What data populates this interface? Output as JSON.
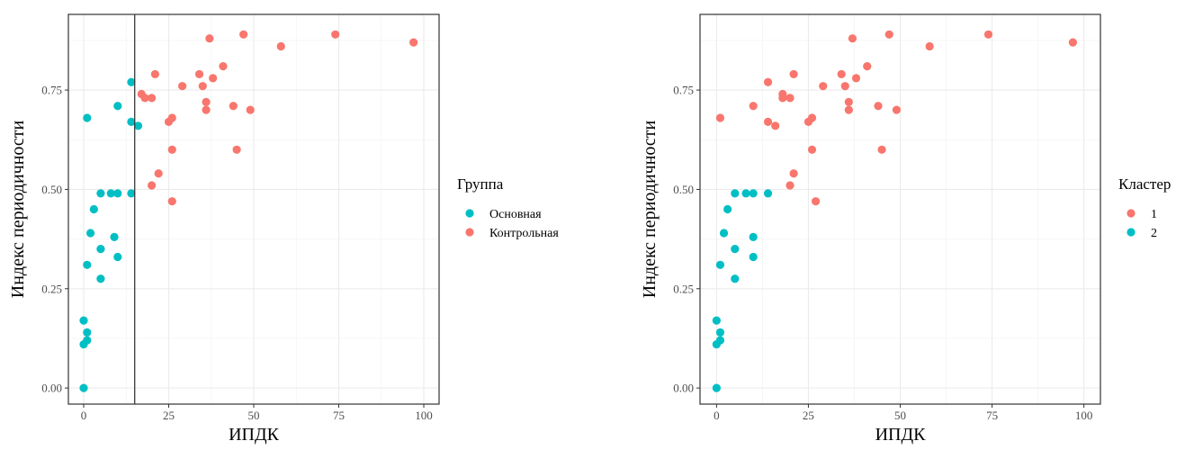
{
  "chart_data": [
    {
      "type": "scatter",
      "xlabel": "ИПДК",
      "ylabel": "Индекс периодичности",
      "xlim": [
        0,
        100
      ],
      "ylim": [
        0,
        0.9
      ],
      "x_ticks": [
        "0",
        "25",
        "50",
        "75",
        "100"
      ],
      "y_ticks": [
        "0.00",
        "0.25",
        "0.50",
        "0.75"
      ],
      "grid": true,
      "vline_x": 15,
      "legend": {
        "title": "Группа",
        "placement": "right"
      },
      "series": [
        {
          "name": "Основная",
          "color": "#00BFC4",
          "points": [
            [
              1,
              0.68
            ],
            [
              14,
              0.77
            ],
            [
              14,
              0.67
            ],
            [
              16,
              0.66
            ],
            [
              10,
              0.71
            ],
            [
              5,
              0.49
            ],
            [
              8,
              0.49
            ],
            [
              10,
              0.49
            ],
            [
              14,
              0.49
            ],
            [
              3,
              0.45
            ],
            [
              2,
              0.39
            ],
            [
              9,
              0.38
            ],
            [
              5,
              0.35
            ],
            [
              10,
              0.33
            ],
            [
              1,
              0.31
            ],
            [
              5,
              0.275
            ],
            [
              0,
              0.17
            ],
            [
              1,
              0.14
            ],
            [
              1,
              0.12
            ],
            [
              0,
              0.11
            ],
            [
              0,
              0.0
            ]
          ]
        },
        {
          "name": "Контрольная",
          "color": "#F8766D",
          "points": [
            [
              74,
              0.89
            ],
            [
              47,
              0.89
            ],
            [
              37,
              0.88
            ],
            [
              97,
              0.87
            ],
            [
              58,
              0.86
            ],
            [
              41,
              0.81
            ],
            [
              21,
              0.79
            ],
            [
              34,
              0.79
            ],
            [
              38,
              0.78
            ],
            [
              29,
              0.76
            ],
            [
              35,
              0.76
            ],
            [
              17,
              0.74
            ],
            [
              18,
              0.73
            ],
            [
              20,
              0.73
            ],
            [
              36,
              0.72
            ],
            [
              44,
              0.71
            ],
            [
              36,
              0.7
            ],
            [
              49,
              0.7
            ],
            [
              26,
              0.68
            ],
            [
              25,
              0.67
            ],
            [
              26,
              0.6
            ],
            [
              45,
              0.6
            ],
            [
              22,
              0.54
            ],
            [
              20,
              0.51
            ],
            [
              26,
              0.47
            ]
          ]
        }
      ]
    },
    {
      "type": "scatter",
      "xlabel": "ИПДК",
      "ylabel": "Индекс периодичности",
      "xlim": [
        0,
        100
      ],
      "ylim": [
        0,
        0.9
      ],
      "x_ticks": [
        "0",
        "25",
        "50",
        "75",
        "100"
      ],
      "y_ticks": [
        "0.00",
        "0.25",
        "0.50",
        "0.75"
      ],
      "grid": true,
      "legend": {
        "title": "Кластер",
        "placement": "right"
      },
      "series": [
        {
          "name": "1",
          "color": "#F8766D",
          "points": [
            [
              74,
              0.89
            ],
            [
              47,
              0.89
            ],
            [
              37,
              0.88
            ],
            [
              97,
              0.87
            ],
            [
              58,
              0.86
            ],
            [
              41,
              0.81
            ],
            [
              21,
              0.79
            ],
            [
              34,
              0.79
            ],
            [
              38,
              0.78
            ],
            [
              14,
              0.77
            ],
            [
              29,
              0.76
            ],
            [
              35,
              0.76
            ],
            [
              18,
              0.74
            ],
            [
              18,
              0.73
            ],
            [
              20,
              0.73
            ],
            [
              36,
              0.72
            ],
            [
              10,
              0.71
            ],
            [
              44,
              0.71
            ],
            [
              36,
              0.7
            ],
            [
              49,
              0.7
            ],
            [
              1,
              0.68
            ],
            [
              26,
              0.68
            ],
            [
              14,
              0.67
            ],
            [
              25,
              0.67
            ],
            [
              16,
              0.66
            ],
            [
              26,
              0.6
            ],
            [
              45,
              0.6
            ],
            [
              21,
              0.54
            ],
            [
              20,
              0.51
            ],
            [
              27,
              0.47
            ]
          ]
        },
        {
          "name": "2",
          "color": "#00BFC4",
          "points": [
            [
              5,
              0.49
            ],
            [
              8,
              0.49
            ],
            [
              10,
              0.49
            ],
            [
              14,
              0.49
            ],
            [
              3,
              0.45
            ],
            [
              2,
              0.39
            ],
            [
              10,
              0.38
            ],
            [
              5,
              0.35
            ],
            [
              10,
              0.33
            ],
            [
              1,
              0.31
            ],
            [
              5,
              0.275
            ],
            [
              0,
              0.17
            ],
            [
              1,
              0.14
            ],
            [
              1,
              0.12
            ],
            [
              0,
              0.11
            ],
            [
              0,
              0.0
            ]
          ]
        }
      ]
    }
  ]
}
